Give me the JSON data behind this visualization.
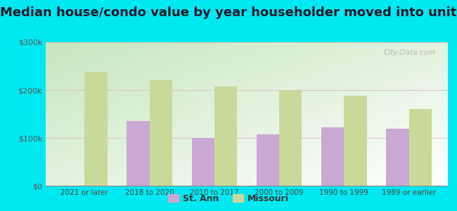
{
  "title": "Median house/condo value by year householder moved into unit",
  "categories": [
    "2021 or later",
    "2018 to 2020",
    "2010 to 2017",
    "2000 to 2009",
    "1990 to 1999",
    "1989 or earlier"
  ],
  "st_ann_values": [
    null,
    135000,
    100000,
    107000,
    122000,
    119000
  ],
  "missouri_values": [
    238000,
    220000,
    207000,
    198000,
    188000,
    160000
  ],
  "st_ann_color": "#c9a8d4",
  "missouri_color": "#c8d99a",
  "background_outer": "#00e8f0",
  "background_inner_topleft": "#c8e6c0",
  "background_inner_bottomright": "#f0f8f0",
  "ylim": [
    0,
    300000
  ],
  "yticks": [
    0,
    100000,
    200000,
    300000
  ],
  "ytick_labels": [
    "$0",
    "$100k",
    "$200k",
    "$300k"
  ],
  "title_fontsize": 13,
  "legend_labels": [
    "St. Ann",
    "Missouri"
  ],
  "bar_width": 0.35,
  "watermark": "City-Data.com"
}
